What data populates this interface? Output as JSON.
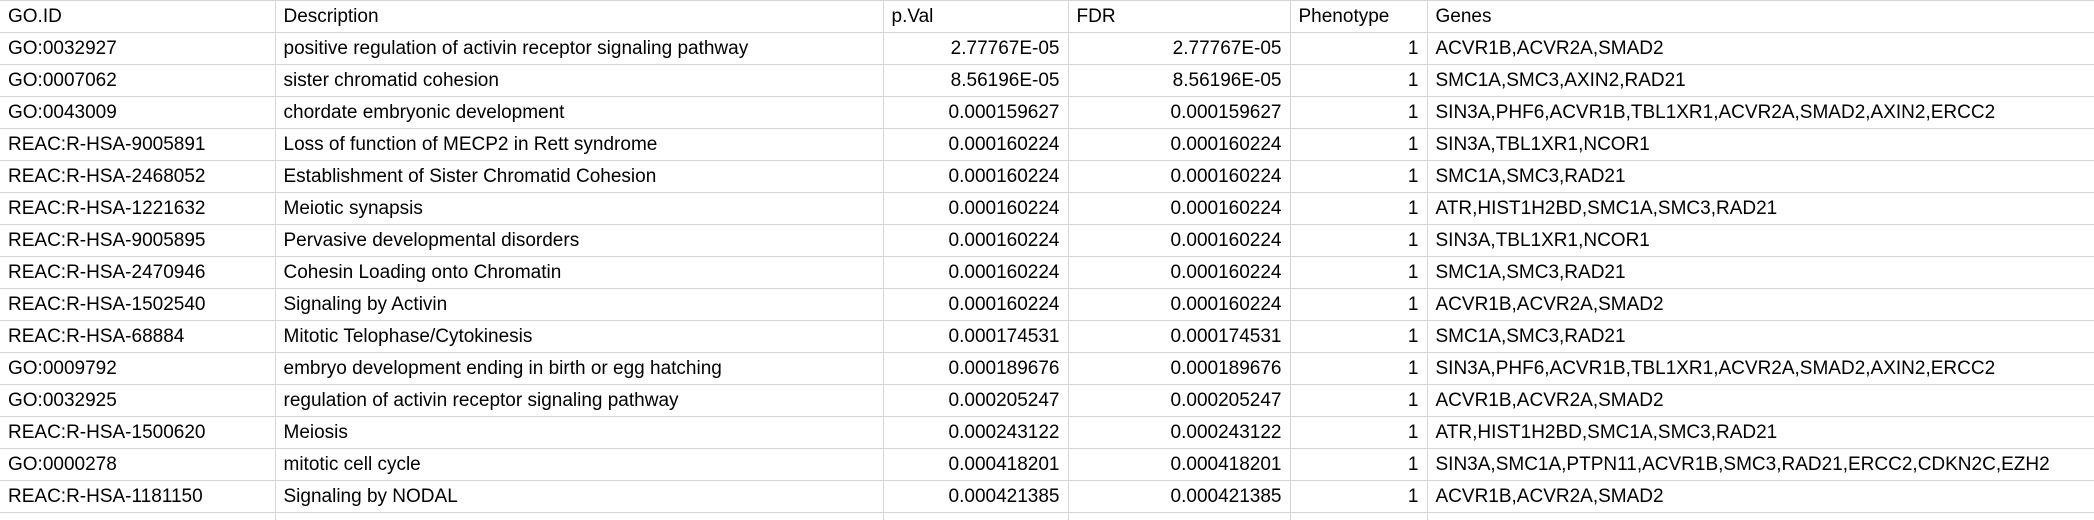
{
  "table": {
    "columns": [
      "GO.ID",
      "Description",
      "p.Val",
      "FDR",
      "Phenotype",
      "Genes"
    ],
    "rows": [
      [
        "GO:0032927",
        "positive regulation of activin receptor signaling pathway",
        "2.77767E-05",
        "2.77767E-05",
        "1",
        "ACVR1B,ACVR2A,SMAD2"
      ],
      [
        "GO:0007062",
        "sister chromatid cohesion",
        "8.56196E-05",
        "8.56196E-05",
        "1",
        "SMC1A,SMC3,AXIN2,RAD21"
      ],
      [
        "GO:0043009",
        "chordate embryonic development",
        "0.000159627",
        "0.000159627",
        "1",
        "SIN3A,PHF6,ACVR1B,TBL1XR1,ACVR2A,SMAD2,AXIN2,ERCC2"
      ],
      [
        "REAC:R-HSA-9005891",
        "Loss of function of MECP2 in Rett syndrome",
        "0.000160224",
        "0.000160224",
        "1",
        "SIN3A,TBL1XR1,NCOR1"
      ],
      [
        "REAC:R-HSA-2468052",
        "Establishment of Sister Chromatid Cohesion",
        "0.000160224",
        "0.000160224",
        "1",
        "SMC1A,SMC3,RAD21"
      ],
      [
        "REAC:R-HSA-1221632",
        "Meiotic synapsis",
        "0.000160224",
        "0.000160224",
        "1",
        "ATR,HIST1H2BD,SMC1A,SMC3,RAD21"
      ],
      [
        "REAC:R-HSA-9005895",
        "Pervasive developmental disorders",
        "0.000160224",
        "0.000160224",
        "1",
        "SIN3A,TBL1XR1,NCOR1"
      ],
      [
        "REAC:R-HSA-2470946",
        "Cohesin Loading onto Chromatin",
        "0.000160224",
        "0.000160224",
        "1",
        "SMC1A,SMC3,RAD21"
      ],
      [
        "REAC:R-HSA-1502540",
        "Signaling by Activin",
        "0.000160224",
        "0.000160224",
        "1",
        "ACVR1B,ACVR2A,SMAD2"
      ],
      [
        "REAC:R-HSA-68884",
        "Mitotic Telophase/Cytokinesis",
        "0.000174531",
        "0.000174531",
        "1",
        "SMC1A,SMC3,RAD21"
      ],
      [
        "GO:0009792",
        "embryo development ending in birth or egg hatching",
        "0.000189676",
        "0.000189676",
        "1",
        "SIN3A,PHF6,ACVR1B,TBL1XR1,ACVR2A,SMAD2,AXIN2,ERCC2"
      ],
      [
        "GO:0032925",
        "regulation of activin receptor signaling pathway",
        "0.000205247",
        "0.000205247",
        "1",
        "ACVR1B,ACVR2A,SMAD2"
      ],
      [
        "REAC:R-HSA-1500620",
        "Meiosis",
        "0.000243122",
        "0.000243122",
        "1",
        "ATR,HIST1H2BD,SMC1A,SMC3,RAD21"
      ],
      [
        "GO:0000278",
        "mitotic cell cycle",
        "0.000418201",
        "0.000418201",
        "1",
        "SIN3A,SMC1A,PTPN11,ACVR1B,SMC3,RAD21,ERCC2,CDKN2C,EZH2"
      ],
      [
        "REAC:R-HSA-1181150",
        "Signaling by NODAL",
        "0.000421385",
        "0.000421385",
        "1",
        "ACVR1B,ACVR2A,SMAD2"
      ]
    ]
  },
  "colors": {
    "gridline": "#d4d4d4",
    "background": "#ffffff",
    "text": "#000000"
  }
}
